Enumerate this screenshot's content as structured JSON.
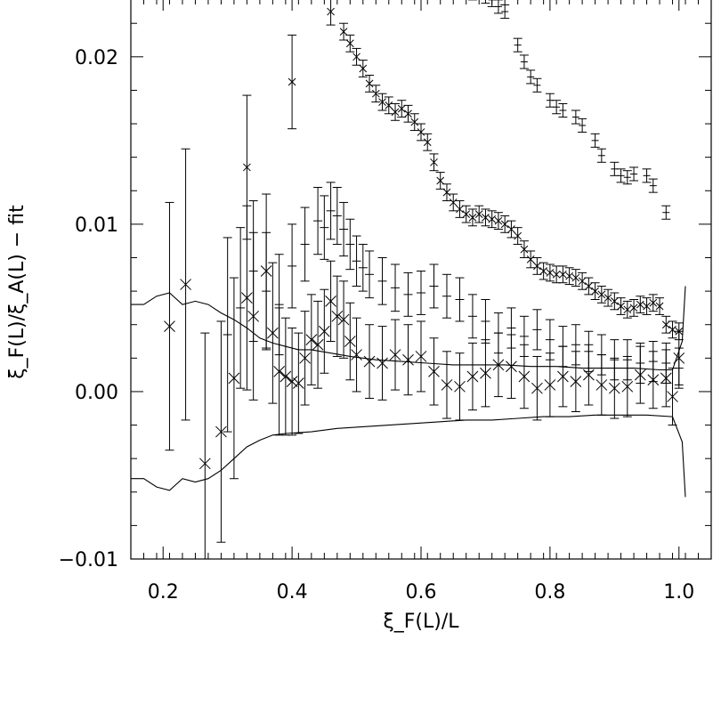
{
  "chart_data": {
    "type": "scatter",
    "title": "",
    "xlabel": "ξ_F(L)/L",
    "ylabel": "ξ_F(L)/ξ_A(L) − fit",
    "xlim": [
      0.15,
      1.05
    ],
    "ylim": [
      -0.01,
      0.0235
    ],
    "x_ticks": [
      0.2,
      0.4,
      0.6,
      0.8,
      1.0
    ],
    "x_tick_labels": [
      "0.2",
      "0.4",
      "0.6",
      "0.8",
      "1.0"
    ],
    "y_ticks": [
      -0.01,
      0.0,
      0.01,
      0.02
    ],
    "y_tick_labels": [
      "−0.01",
      "0.00",
      "0.01",
      "0.02"
    ],
    "grid": false,
    "legend": "none",
    "series": [
      {
        "marker": "cross-large",
        "points": [
          [
            0.21,
            0.0039,
            0.0074
          ],
          [
            0.235,
            0.0064,
            0.0081
          ],
          [
            0.265,
            -0.0043,
            0.0078
          ],
          [
            0.29,
            -0.0024,
            0.0066
          ],
          [
            0.31,
            0.0008,
            0.006
          ],
          [
            0.33,
            0.0056,
            0.0055
          ],
          [
            0.34,
            0.0045,
            0.005
          ],
          [
            0.36,
            0.0072,
            0.0046
          ],
          [
            0.37,
            0.0035,
            0.0042
          ],
          [
            0.38,
            0.0012,
            0.0038
          ],
          [
            0.39,
            0.0009,
            0.0035
          ],
          [
            0.4,
            0.0006,
            0.0032
          ],
          [
            0.41,
            0.0005,
            0.003
          ],
          [
            0.42,
            0.002,
            0.0028
          ],
          [
            0.43,
            0.0031,
            0.0027
          ],
          [
            0.44,
            0.0028,
            0.0026
          ],
          [
            0.45,
            0.0036,
            0.0025
          ],
          [
            0.46,
            0.0054,
            0.0024
          ],
          [
            0.47,
            0.0045,
            0.0024
          ],
          [
            0.48,
            0.0043,
            0.0023
          ],
          [
            0.49,
            0.003,
            0.0023
          ],
          [
            0.5,
            0.0022,
            0.0022
          ],
          [
            0.52,
            0.0018,
            0.0022
          ],
          [
            0.54,
            0.0017,
            0.0022
          ],
          [
            0.56,
            0.0022,
            0.0021
          ],
          [
            0.58,
            0.0019,
            0.0021
          ],
          [
            0.6,
            0.0021,
            0.0021
          ],
          [
            0.62,
            0.0012,
            0.002
          ],
          [
            0.64,
            0.0004,
            0.002
          ],
          [
            0.66,
            0.0003,
            0.002
          ],
          [
            0.68,
            0.0009,
            0.002
          ],
          [
            0.7,
            0.0011,
            0.002
          ],
          [
            0.72,
            0.0016,
            0.0019
          ],
          [
            0.74,
            0.0015,
            0.0019
          ],
          [
            0.76,
            0.0009,
            0.0019
          ],
          [
            0.78,
            0.0002,
            0.0019
          ],
          [
            0.8,
            0.0004,
            0.0019
          ],
          [
            0.82,
            0.0009,
            0.0018
          ],
          [
            0.84,
            0.0006,
            0.0018
          ],
          [
            0.86,
            0.001,
            0.0018
          ],
          [
            0.88,
            0.0004,
            0.0018
          ],
          [
            0.9,
            0.0002,
            0.0018
          ],
          [
            0.92,
            0.0003,
            0.0018
          ],
          [
            0.94,
            0.001,
            0.0017
          ],
          [
            0.96,
            0.0007,
            0.0017
          ],
          [
            0.98,
            0.0008,
            0.0017
          ],
          [
            0.99,
            -0.0003,
            0.0017
          ],
          [
            1.0,
            0.002,
            0.0016
          ]
        ]
      },
      {
        "marker": "plus",
        "points": [
          [
            0.3,
            0.0034,
            0.0058
          ],
          [
            0.32,
            0.005,
            0.0048
          ],
          [
            0.34,
            0.0072,
            0.0042
          ],
          [
            0.36,
            0.006,
            0.0035
          ],
          [
            0.38,
            0.0052,
            0.003
          ],
          [
            0.4,
            0.0075,
            0.0025
          ],
          [
            0.42,
            0.0088,
            0.0022
          ],
          [
            0.44,
            0.0102,
            0.002
          ],
          [
            0.45,
            0.0098,
            0.0019
          ],
          [
            0.46,
            0.0108,
            0.0017
          ],
          [
            0.47,
            0.0105,
            0.0017
          ],
          [
            0.48,
            0.0097,
            0.0016
          ],
          [
            0.49,
            0.0088,
            0.0015
          ],
          [
            0.5,
            0.0078,
            0.0015
          ],
          [
            0.51,
            0.0074,
            0.0014
          ],
          [
            0.52,
            0.007,
            0.0014
          ],
          [
            0.54,
            0.0066,
            0.0014
          ],
          [
            0.56,
            0.0062,
            0.0014
          ],
          [
            0.58,
            0.0058,
            0.0013
          ],
          [
            0.6,
            0.0059,
            0.0013
          ],
          [
            0.62,
            0.0063,
            0.0013
          ],
          [
            0.64,
            0.0057,
            0.0013
          ],
          [
            0.66,
            0.0055,
            0.0013
          ],
          [
            0.68,
            0.0045,
            0.0013
          ],
          [
            0.7,
            0.0042,
            0.0013
          ],
          [
            0.72,
            0.0035,
            0.0012
          ],
          [
            0.74,
            0.0038,
            0.0012
          ],
          [
            0.76,
            0.0033,
            0.0012
          ],
          [
            0.78,
            0.0037,
            0.0012
          ],
          [
            0.8,
            0.0031,
            0.0012
          ],
          [
            0.82,
            0.0027,
            0.0012
          ],
          [
            0.84,
            0.0028,
            0.0012
          ],
          [
            0.86,
            0.0024,
            0.0012
          ],
          [
            0.88,
            0.0022,
            0.0012
          ],
          [
            0.9,
            0.0019,
            0.0012
          ],
          [
            0.92,
            0.0019,
            0.0012
          ],
          [
            0.94,
            0.0017,
            0.0012
          ],
          [
            0.96,
            0.0018,
            0.0012
          ],
          [
            0.98,
            0.0017,
            0.0012
          ],
          [
            1.0,
            0.0014,
            0.0012
          ]
        ]
      },
      {
        "marker": "cross-small",
        "points": [
          [
            0.33,
            0.0134,
            0.0043
          ],
          [
            0.4,
            0.0185,
            0.0028
          ],
          [
            0.46,
            0.0227,
            0.0008
          ],
          [
            0.48,
            0.0215,
            0.0005
          ],
          [
            0.49,
            0.0208,
            0.0005
          ],
          [
            0.5,
            0.02,
            0.0005
          ],
          [
            0.51,
            0.0193,
            0.0005
          ],
          [
            0.52,
            0.0184,
            0.0005
          ],
          [
            0.53,
            0.0178,
            0.0005
          ],
          [
            0.54,
            0.0173,
            0.0005
          ],
          [
            0.55,
            0.0171,
            0.0005
          ],
          [
            0.56,
            0.0167,
            0.0005
          ],
          [
            0.57,
            0.0169,
            0.0005
          ],
          [
            0.58,
            0.0166,
            0.0005
          ],
          [
            0.59,
            0.0161,
            0.0005
          ],
          [
            0.6,
            0.0155,
            0.0005
          ],
          [
            0.61,
            0.0149,
            0.0005
          ],
          [
            0.62,
            0.0137,
            0.0005
          ],
          [
            0.63,
            0.0126,
            0.0005
          ],
          [
            0.64,
            0.0119,
            0.0005
          ],
          [
            0.65,
            0.0113,
            0.0005
          ],
          [
            0.66,
            0.0109,
            0.0005
          ],
          [
            0.67,
            0.0106,
            0.0005
          ],
          [
            0.68,
            0.0104,
            0.0005
          ],
          [
            0.69,
            0.0106,
            0.0005
          ],
          [
            0.7,
            0.0104,
            0.0005
          ],
          [
            0.71,
            0.0103,
            0.0005
          ],
          [
            0.72,
            0.0102,
            0.0005
          ],
          [
            0.73,
            0.01,
            0.0005
          ],
          [
            0.74,
            0.0097,
            0.0005
          ],
          [
            0.75,
            0.0093,
            0.0005
          ],
          [
            0.76,
            0.0085,
            0.0005
          ],
          [
            0.77,
            0.0079,
            0.0005
          ],
          [
            0.78,
            0.0075,
            0.0005
          ],
          [
            0.79,
            0.0072,
            0.0005
          ],
          [
            0.8,
            0.0071,
            0.0005
          ],
          [
            0.81,
            0.007,
            0.0005
          ],
          [
            0.82,
            0.007,
            0.0005
          ],
          [
            0.83,
            0.0069,
            0.0005
          ],
          [
            0.84,
            0.0068,
            0.0005
          ],
          [
            0.85,
            0.0066,
            0.0005
          ],
          [
            0.86,
            0.0063,
            0.0005
          ],
          [
            0.87,
            0.006,
            0.0005
          ],
          [
            0.88,
            0.0058,
            0.0005
          ],
          [
            0.89,
            0.0056,
            0.0005
          ],
          [
            0.9,
            0.0054,
            0.0005
          ],
          [
            0.91,
            0.0051,
            0.0005
          ],
          [
            0.92,
            0.0049,
            0.0005
          ],
          [
            0.93,
            0.005,
            0.0005
          ],
          [
            0.94,
            0.0052,
            0.0005
          ],
          [
            0.95,
            0.0051,
            0.0005
          ],
          [
            0.96,
            0.0053,
            0.0005
          ],
          [
            0.97,
            0.0051,
            0.0005
          ],
          [
            0.98,
            0.004,
            0.0005
          ],
          [
            0.99,
            0.0037,
            0.0005
          ],
          [
            1.0,
            0.0036,
            0.0005
          ]
        ]
      },
      {
        "marker": "plus-small",
        "points": [
          [
            0.66,
            0.024,
            0.0004
          ],
          [
            0.68,
            0.0238,
            0.0004
          ],
          [
            0.7,
            0.0236,
            0.0004
          ],
          [
            0.71,
            0.0234,
            0.0004
          ],
          [
            0.72,
            0.023,
            0.0004
          ],
          [
            0.73,
            0.0227,
            0.0004
          ],
          [
            0.75,
            0.0207,
            0.0004
          ],
          [
            0.76,
            0.0197,
            0.0004
          ],
          [
            0.77,
            0.0188,
            0.0004
          ],
          [
            0.78,
            0.0183,
            0.0004
          ],
          [
            0.8,
            0.0174,
            0.0004
          ],
          [
            0.81,
            0.017,
            0.0004
          ],
          [
            0.82,
            0.0168,
            0.0004
          ],
          [
            0.84,
            0.0164,
            0.0004
          ],
          [
            0.85,
            0.0159,
            0.0004
          ],
          [
            0.87,
            0.015,
            0.0004
          ],
          [
            0.88,
            0.0141,
            0.0004
          ],
          [
            0.9,
            0.0133,
            0.0004
          ],
          [
            0.91,
            0.0129,
            0.0004
          ],
          [
            0.92,
            0.0128,
            0.0004
          ],
          [
            0.93,
            0.013,
            0.0004
          ],
          [
            0.95,
            0.0129,
            0.0004
          ],
          [
            0.96,
            0.0123,
            0.0004
          ],
          [
            0.98,
            0.0107,
            0.0004
          ]
        ]
      }
    ],
    "bands": {
      "upper": [
        [
          0.15,
          0.0052
        ],
        [
          0.17,
          0.0052
        ],
        [
          0.19,
          0.0057
        ],
        [
          0.21,
          0.0059
        ],
        [
          0.23,
          0.0052
        ],
        [
          0.25,
          0.0054
        ],
        [
          0.27,
          0.0052
        ],
        [
          0.29,
          0.0047
        ],
        [
          0.31,
          0.0043
        ],
        [
          0.33,
          0.0038
        ],
        [
          0.35,
          0.0032
        ],
        [
          0.37,
          0.0029
        ],
        [
          0.39,
          0.0027
        ],
        [
          0.41,
          0.0025
        ],
        [
          0.43,
          0.0025
        ],
        [
          0.46,
          0.0023
        ],
        [
          0.49,
          0.0021
        ],
        [
          0.53,
          0.0019
        ],
        [
          0.57,
          0.0018
        ],
        [
          0.61,
          0.0017
        ],
        [
          0.65,
          0.0016
        ],
        [
          0.69,
          0.0016
        ],
        [
          0.73,
          0.0016
        ],
        [
          0.77,
          0.0015
        ],
        [
          0.81,
          0.0015
        ],
        [
          0.85,
          0.0014
        ],
        [
          0.89,
          0.0014
        ],
        [
          0.93,
          0.0014
        ],
        [
          0.97,
          0.0013
        ],
        [
          0.99,
          0.0013
        ],
        [
          1.005,
          0.003
        ],
        [
          1.01,
          0.0063
        ]
      ],
      "lower": [
        [
          0.15,
          -0.0052
        ],
        [
          0.17,
          -0.0052
        ],
        [
          0.19,
          -0.0057
        ],
        [
          0.21,
          -0.0059
        ],
        [
          0.23,
          -0.0052
        ],
        [
          0.25,
          -0.0054
        ],
        [
          0.27,
          -0.0052
        ],
        [
          0.29,
          -0.0047
        ],
        [
          0.31,
          -0.004
        ],
        [
          0.33,
          -0.0033
        ],
        [
          0.35,
          -0.0029
        ],
        [
          0.37,
          -0.0026
        ],
        [
          0.39,
          -0.0025
        ],
        [
          0.43,
          -0.0024
        ],
        [
          0.47,
          -0.0022
        ],
        [
          0.51,
          -0.0021
        ],
        [
          0.55,
          -0.002
        ],
        [
          0.59,
          -0.0019
        ],
        [
          0.63,
          -0.0018
        ],
        [
          0.67,
          -0.0017
        ],
        [
          0.71,
          -0.0017
        ],
        [
          0.75,
          -0.0016
        ],
        [
          0.79,
          -0.0015
        ],
        [
          0.83,
          -0.0015
        ],
        [
          0.87,
          -0.0014
        ],
        [
          0.91,
          -0.0014
        ],
        [
          0.95,
          -0.0014
        ],
        [
          0.99,
          -0.0015
        ],
        [
          1.005,
          -0.003
        ],
        [
          1.01,
          -0.0063
        ]
      ]
    }
  }
}
